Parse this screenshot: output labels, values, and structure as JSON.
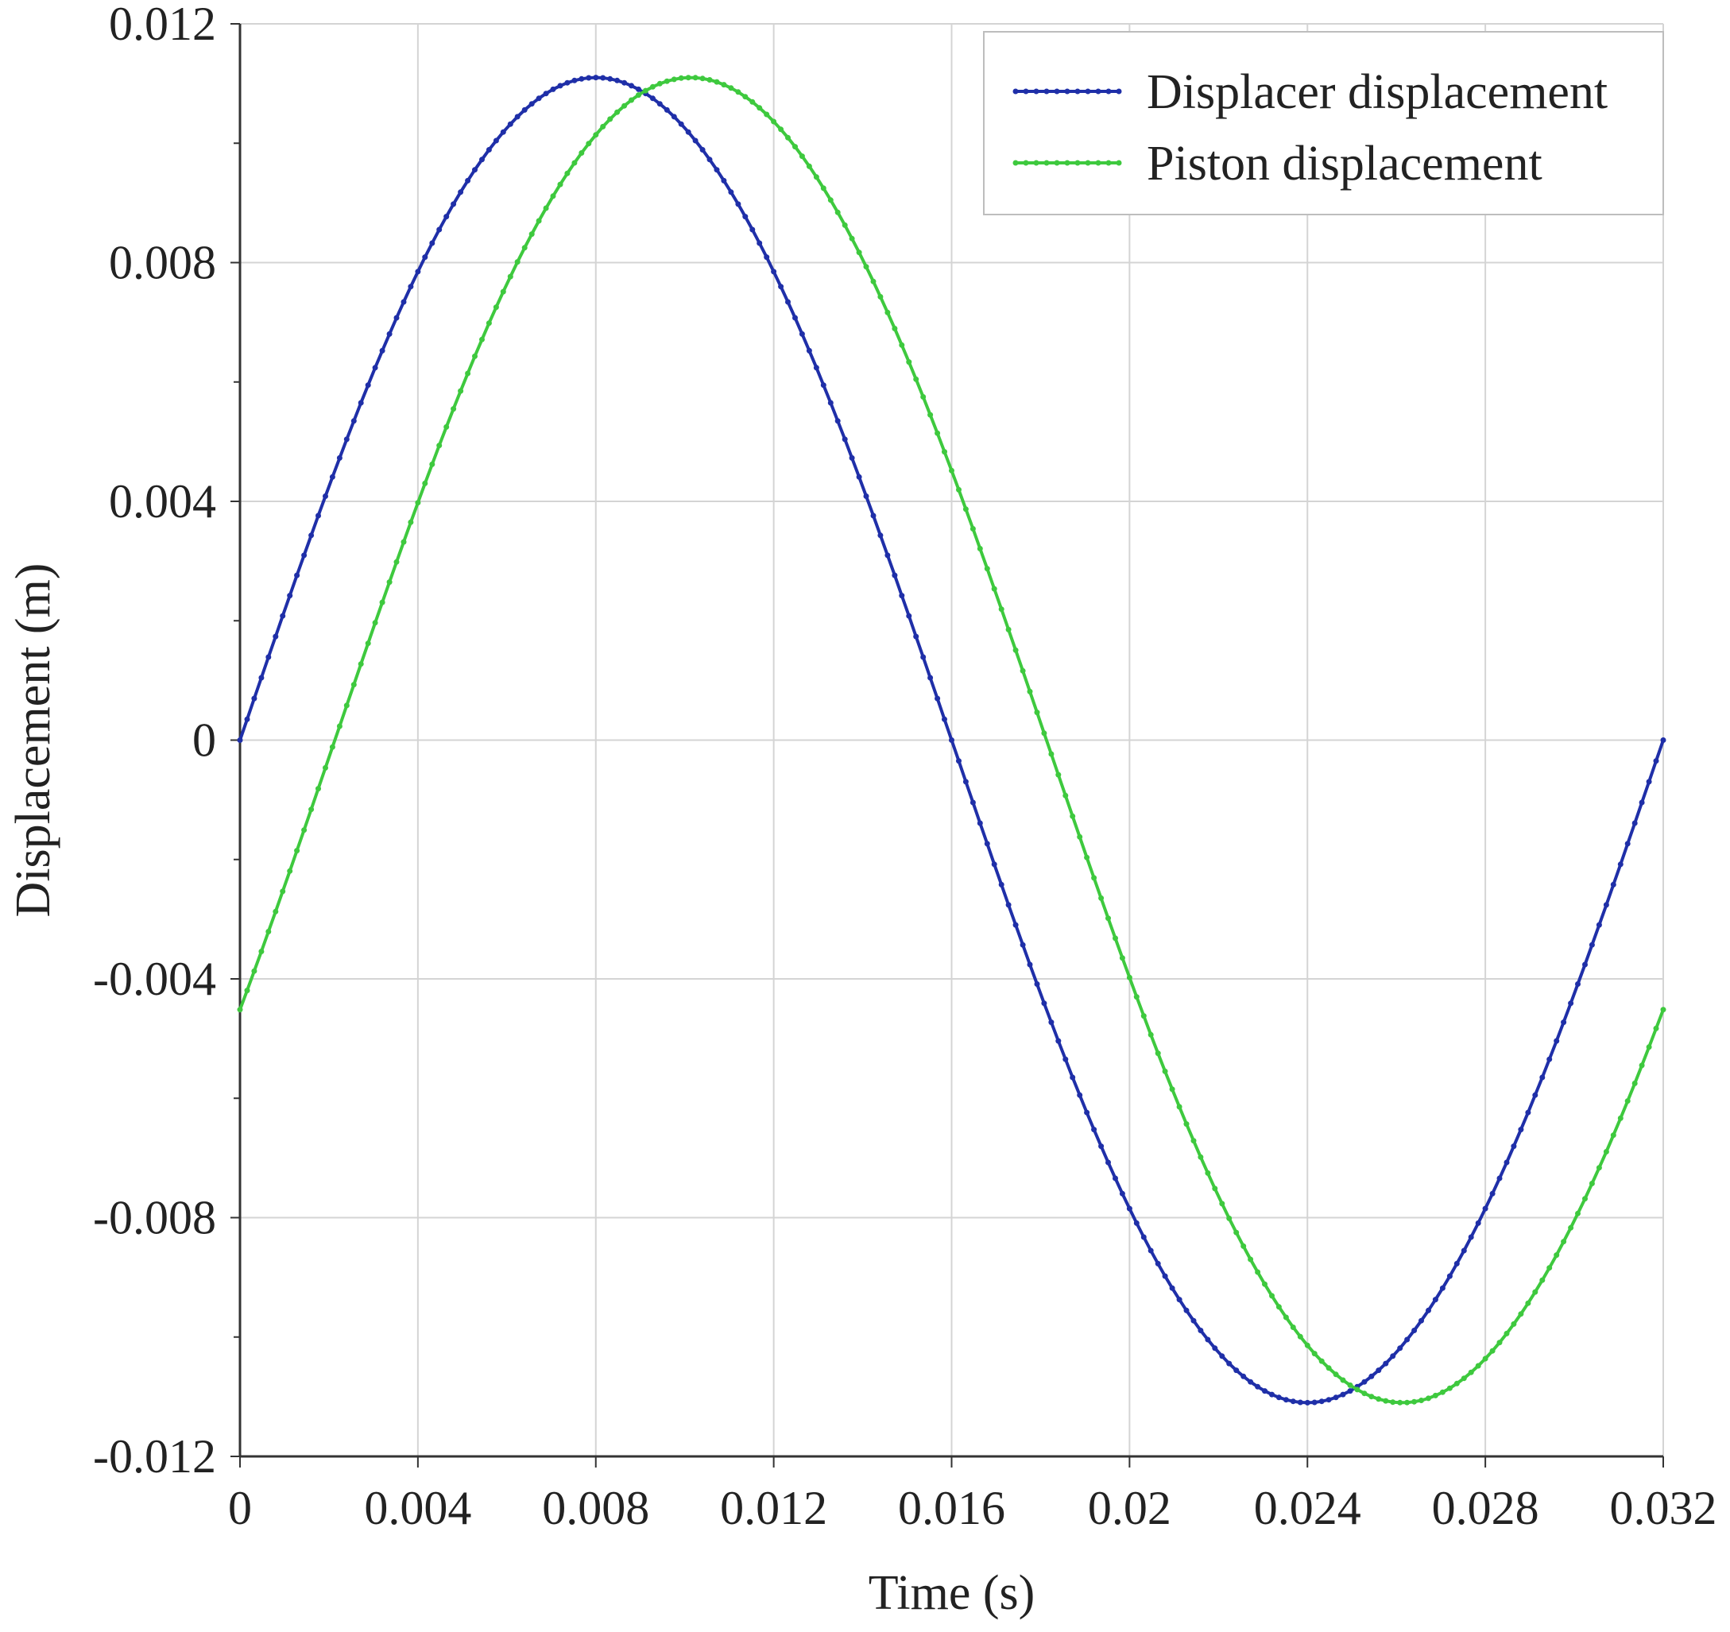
{
  "chart_data": {
    "type": "line",
    "title": "",
    "xlabel": "Time (s)",
    "ylabel": "Displacement (m)",
    "xlim": [
      0,
      0.032
    ],
    "ylim": [
      -0.012,
      0.012
    ],
    "x_ticks": [
      "0",
      "0.004",
      "0.008",
      "0.012",
      "0.016",
      "0.02",
      "0.024",
      "0.028",
      "0.032"
    ],
    "y_ticks": [
      "0.012",
      "0.008",
      "0.004",
      "0",
      "-0.004",
      "-0.008",
      "-0.012"
    ],
    "grid": true,
    "legend_position": "top-right",
    "series": [
      {
        "name": "Displacer displacement",
        "color": "#1f2fa8",
        "marker": "dot",
        "amplitude": 0.0111,
        "period": 0.032,
        "phase_deg": 0,
        "points": [
          [
            0,
            0.0
          ],
          [
            0.004,
            0.00785
          ],
          [
            0.007,
            0.0092
          ],
          [
            0.008,
            0.0092
          ],
          [
            0.012,
            0.0052
          ],
          [
            0.016,
            -0.002
          ],
          [
            0.02,
            -0.0087
          ],
          [
            0.0235,
            -0.011
          ],
          [
            0.024,
            -0.011
          ],
          [
            0.028,
            -0.0068
          ],
          [
            0.032,
            0.0
          ]
        ]
      },
      {
        "name": "Piston displacement",
        "color": "#3ec93e",
        "marker": "dot",
        "amplitude": 0.0111,
        "period": 0.032,
        "phase_deg": -24,
        "points": [
          [
            0,
            -0.0045
          ],
          [
            0.004,
            0.004
          ],
          [
            0.008,
            0.0095
          ],
          [
            0.0102,
            0.0105
          ],
          [
            0.012,
            0.01
          ],
          [
            0.016,
            0.0045
          ],
          [
            0.02,
            -0.0035
          ],
          [
            0.024,
            -0.0095
          ],
          [
            0.0265,
            -0.011
          ],
          [
            0.028,
            -0.0105
          ],
          [
            0.032,
            -0.0045
          ]
        ]
      }
    ]
  }
}
